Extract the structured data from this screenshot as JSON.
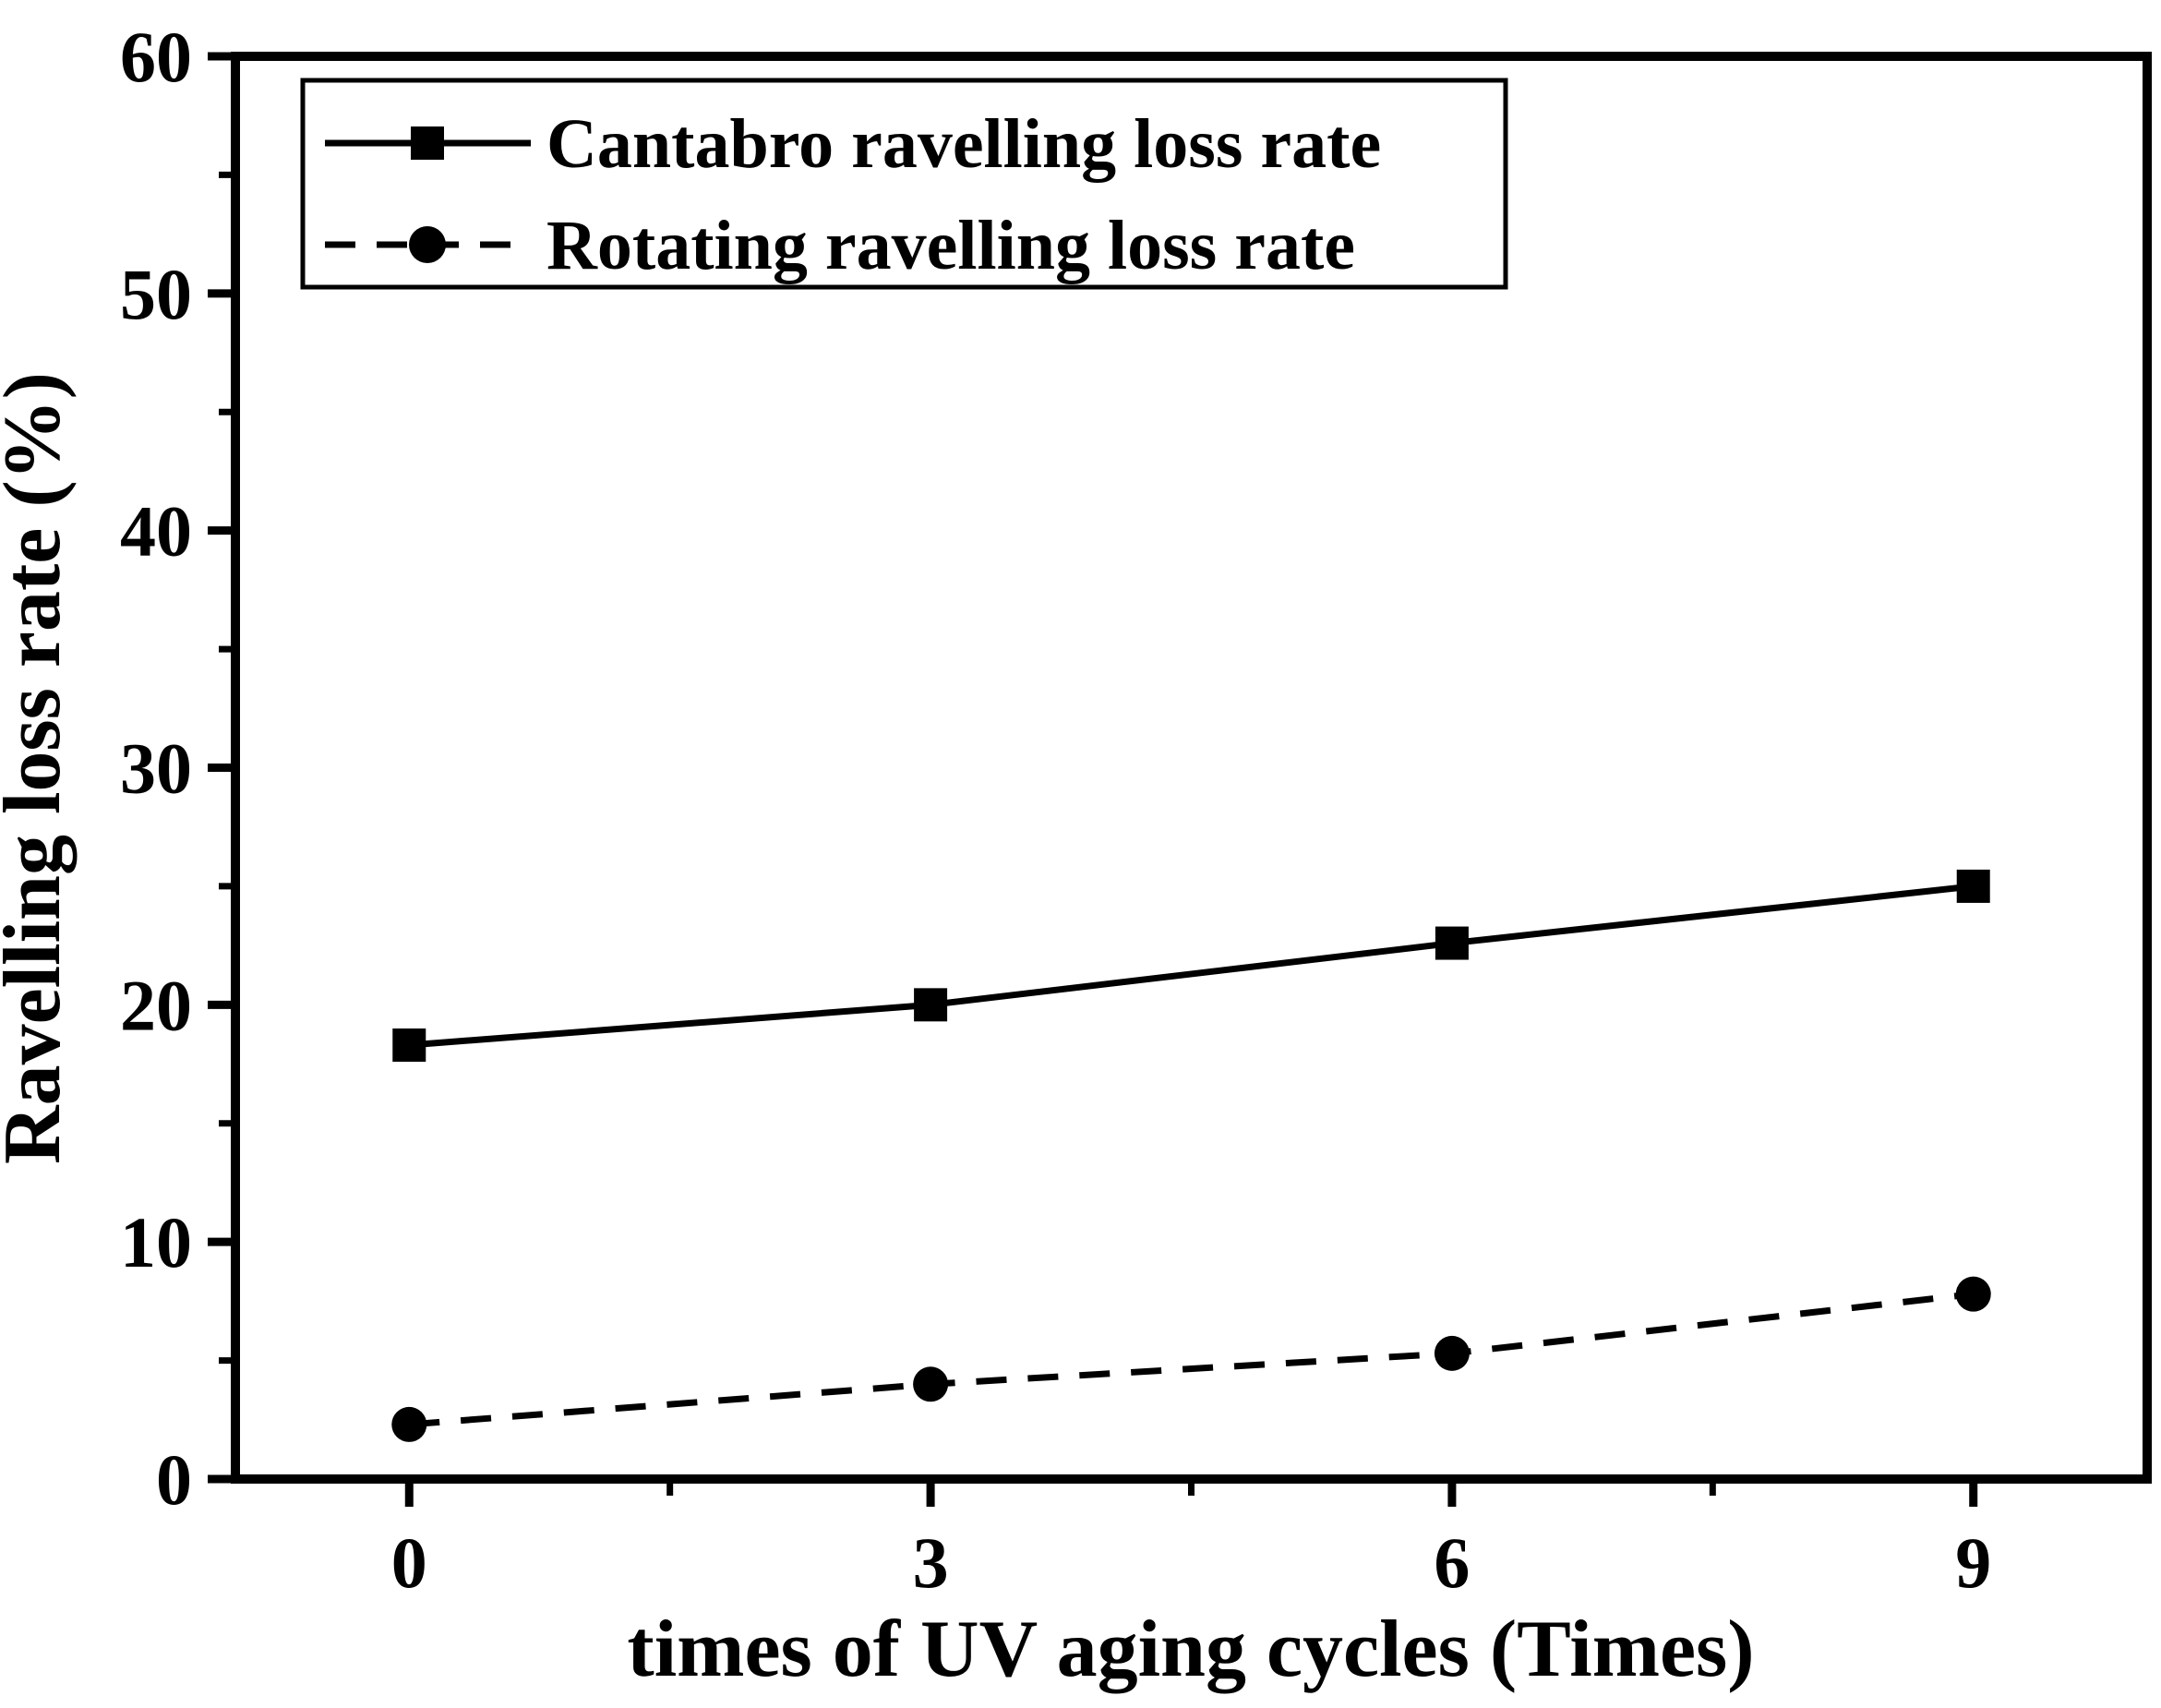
{
  "chart_data": {
    "type": "line",
    "title": "",
    "xlabel": "times of UV aging cycles (Times)",
    "ylabel": "Ravelling loss rate (%)",
    "x": [
      0,
      3,
      6,
      9
    ],
    "series": [
      {
        "name": "Cantabro ravelling loss rate",
        "marker": "square",
        "linestyle": "solid",
        "color": "#000000",
        "values": [
          18.3,
          20.0,
          22.6,
          25.0
        ]
      },
      {
        "name": "Rotating ravelling loss rate",
        "marker": "circle",
        "linestyle": "dashed",
        "color": "#000000",
        "values": [
          2.3,
          4.0,
          5.3,
          7.8
        ]
      }
    ],
    "xlim": [
      -1,
      10
    ],
    "ylim": [
      0,
      60
    ],
    "xticks": [
      0,
      3,
      6,
      9
    ],
    "xminorticks": [
      1.5,
      4.5,
      7.5
    ],
    "yticks": [
      0,
      10,
      20,
      30,
      40,
      50,
      60
    ],
    "yminorticks": [
      5,
      15,
      25,
      35,
      45,
      55
    ],
    "grid": false,
    "legend_position": "top-left",
    "axis_color": "#000000",
    "background": "#ffffff"
  }
}
